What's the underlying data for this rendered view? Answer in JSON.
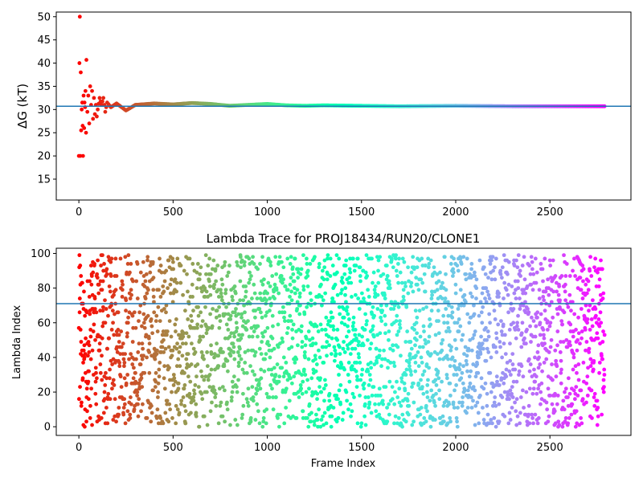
{
  "chart_data": [
    {
      "type": "scatter",
      "title": "",
      "xlabel": "",
      "ylabel": "ΔG (kT)",
      "xlim": [
        -120,
        2930
      ],
      "ylim": [
        10.5,
        51
      ],
      "xticks": [
        0,
        500,
        1000,
        1500,
        2000,
        2500
      ],
      "yticks": [
        15,
        20,
        25,
        30,
        35,
        40,
        45,
        50
      ],
      "hline": {
        "y": 30.7,
        "color": "#1f77b4"
      },
      "colormap": "rainbow_r",
      "grid": false,
      "series": [
        {
          "x": [
            0,
            3,
            5,
            8,
            10,
            12,
            15,
            18,
            20,
            22,
            25,
            28,
            30,
            33,
            35,
            38,
            40,
            45,
            50,
            55,
            60,
            65,
            70,
            75,
            80,
            85,
            90,
            95,
            100,
            110,
            120,
            130,
            140,
            150,
            170,
            200,
            250,
            300,
            400,
            500,
            600,
            700,
            800,
            900,
            1000,
            1100,
            1200,
            1300,
            1500,
            1700,
            2000,
            2300,
            2600,
            2790
          ],
          "y": [
            20,
            40,
            50,
            20,
            38,
            25.5,
            30,
            31.5,
            26.5,
            20,
            33,
            26,
            31.5,
            30.5,
            34,
            25,
            40.7,
            29.5,
            33,
            27,
            35,
            31,
            34,
            28,
            32.5,
            29,
            31,
            28.5,
            30,
            32.5,
            31,
            32.5,
            29.5,
            31.5,
            30.5,
            31.3,
            29.8,
            31,
            31.3,
            31.1,
            31.4,
            31.2,
            30.8,
            31,
            31.2,
            30.9,
            30.8,
            30.9,
            30.8,
            30.7,
            30.8,
            30.7,
            30.7,
            30.7
          ]
        }
      ]
    },
    {
      "type": "scatter",
      "title": "Lambda Trace for PROJ18434/RUN20/CLONE1",
      "xlabel": "Frame Index",
      "ylabel": "Lambda Index",
      "xlim": [
        -120,
        2930
      ],
      "ylim": [
        -5,
        103
      ],
      "xticks": [
        0,
        500,
        1000,
        1500,
        2000,
        2500
      ],
      "yticks": [
        0,
        20,
        40,
        60,
        80,
        100
      ],
      "hline": {
        "y": 71,
        "color": "#1f77b4"
      },
      "colormap": "rainbow_r",
      "grid": false,
      "frame_range": [
        0,
        2790
      ],
      "lambda_range": [
        0,
        99
      ],
      "n_points": 2790
    }
  ]
}
